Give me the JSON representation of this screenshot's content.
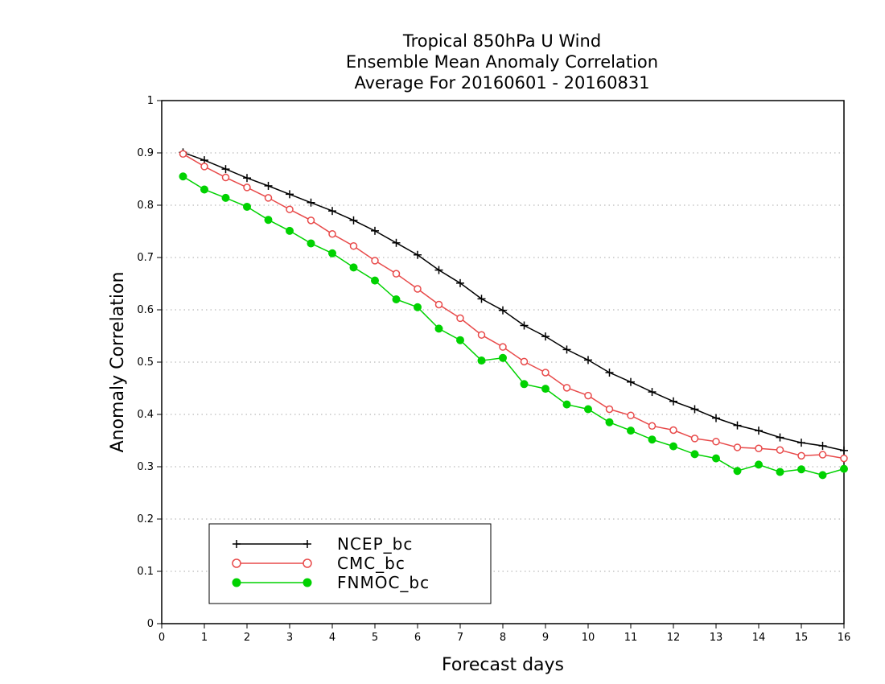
{
  "chart_data": {
    "type": "line",
    "title_lines": [
      "Tropical 850hPa U Wind",
      "Ensemble Mean Anomaly Correlation",
      "Average For 20160601 - 20160831"
    ],
    "xlabel": "Forecast days",
    "ylabel": "Anomaly Correlation",
    "xlim": [
      0,
      16
    ],
    "ylim": [
      0,
      1
    ],
    "x_ticks": [
      "0",
      "1",
      "2",
      "3",
      "4",
      "5",
      "6",
      "7",
      "8",
      "9",
      "10",
      "11",
      "12",
      "13",
      "14",
      "15",
      "16"
    ],
    "y_ticks": [
      "0",
      "0.1",
      "0.2",
      "0.3",
      "0.4",
      "0.5",
      "0.6",
      "0.7",
      "0.8",
      "0.9",
      "1"
    ],
    "grid": "horizontal dotted",
    "legend_position": "bottom-left",
    "x": [
      0.5,
      1,
      1.5,
      2,
      2.5,
      3,
      3.5,
      4,
      4.5,
      5,
      5.5,
      6,
      6.5,
      7,
      7.5,
      8,
      8.5,
      9,
      9.5,
      10,
      10.5,
      11,
      11.5,
      12,
      12.5,
      13,
      13.5,
      14,
      14.5,
      15,
      15.5,
      16
    ],
    "series": [
      {
        "name": "NCEP_bc",
        "color": "#000000",
        "marker": "plus",
        "values": [
          0.901,
          0.886,
          0.869,
          0.852,
          0.837,
          0.821,
          0.805,
          0.789,
          0.771,
          0.751,
          0.728,
          0.705,
          0.676,
          0.651,
          0.621,
          0.599,
          0.57,
          0.549,
          0.524,
          0.504,
          0.48,
          0.462,
          0.443,
          0.425,
          0.41,
          0.393,
          0.379,
          0.369,
          0.356,
          0.346,
          0.34,
          0.331
        ]
      },
      {
        "name": "CMC_bc",
        "color": "#e84a4a",
        "marker": "open-circle",
        "values": [
          0.898,
          0.874,
          0.853,
          0.834,
          0.814,
          0.792,
          0.771,
          0.745,
          0.722,
          0.694,
          0.669,
          0.64,
          0.61,
          0.584,
          0.552,
          0.529,
          0.501,
          0.48,
          0.451,
          0.436,
          0.41,
          0.398,
          0.378,
          0.37,
          0.354,
          0.348,
          0.337,
          0.335,
          0.332,
          0.321,
          0.323,
          0.316
        ]
      },
      {
        "name": "FNMOC_bc",
        "color": "#00d200",
        "marker": "filled-circle",
        "values": [
          0.855,
          0.83,
          0.814,
          0.797,
          0.772,
          0.751,
          0.727,
          0.708,
          0.681,
          0.656,
          0.62,
          0.605,
          0.564,
          0.542,
          0.503,
          0.508,
          0.458,
          0.449,
          0.419,
          0.41,
          0.385,
          0.369,
          0.352,
          0.339,
          0.324,
          0.316,
          0.292,
          0.304,
          0.29,
          0.295,
          0.284,
          0.296
        ]
      }
    ]
  }
}
